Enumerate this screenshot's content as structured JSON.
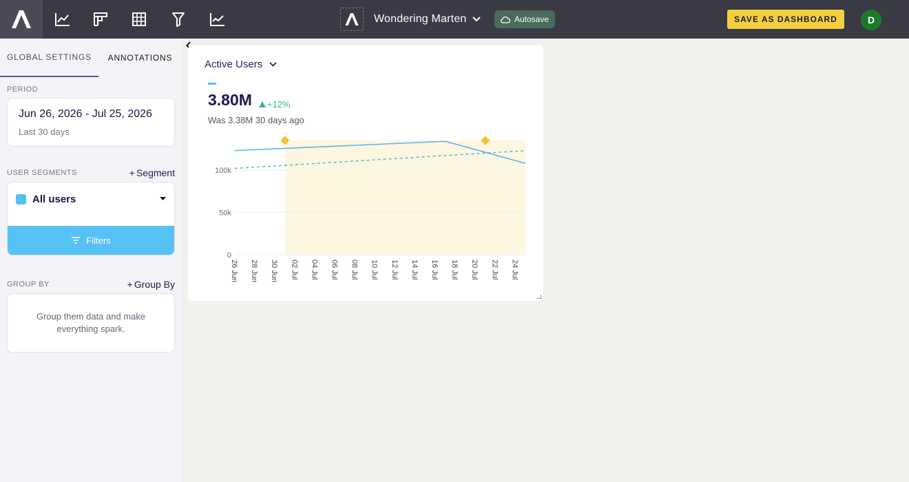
{
  "topbar": {
    "project_name": "Wondering Marten",
    "autosave_label": "Autosave",
    "save_dashboard_label": "SAVE AS DASHBOARD",
    "avatar_initial": "D",
    "nav_icons": [
      "trend-icon",
      "funnel-grid-icon",
      "table-icon",
      "filter-funnel-icon",
      "retention-icon"
    ]
  },
  "sidebar": {
    "tabs": [
      "GLOBAL SETTINGS",
      "ANNOTATIONS"
    ],
    "active_tab": "GLOBAL SETTINGS",
    "period": {
      "label": "PERIOD",
      "range": "Jun 26, 2026 - Jul 25, 2026",
      "sub": "Last 30 days"
    },
    "segments": {
      "label": "USER SEGMENTS",
      "add_label": "Segment",
      "item": "All users",
      "item_color": "#56c1ef",
      "filters_label": "Filters"
    },
    "groupby": {
      "label": "GROUP BY",
      "add_label": "Group By",
      "empty_text": "Group them data and make everything spark."
    }
  },
  "chart_card": {
    "title": "Active Users",
    "value": "3.80M",
    "delta": "+12%",
    "compare": "Was 3.38M 30 days ago"
  },
  "chart_data": {
    "type": "line",
    "x_labels": [
      "26 Jun",
      "28 Jun",
      "30 Jun",
      "02 Jul",
      "04 Jul",
      "06 Jul",
      "08 Jul",
      "10 Jul",
      "12 Jul",
      "14 Jul",
      "16 Jul",
      "18 Jul",
      "20 Jul",
      "22 Jul",
      "24 Jul"
    ],
    "y_ticks": [
      "0",
      "50k",
      "100k"
    ],
    "ylim": [
      0,
      135000
    ],
    "series": [
      {
        "style": "solid",
        "color": "#5cb8e6",
        "points": [
          [
            "26 Jun",
            123000
          ],
          [
            "17 Jul",
            134000
          ],
          [
            "25 Jul",
            108000
          ]
        ]
      },
      {
        "style": "dashed",
        "color": "#4fc3d9",
        "points": [
          [
            "26 Jun",
            102000
          ],
          [
            "25 Jul",
            123000
          ]
        ]
      }
    ],
    "highlight_range": [
      "01 Jul",
      "25 Jul"
    ],
    "highlight_color": "#fdf6e1",
    "annotation_markers": [
      "01 Jul",
      "21 Jul"
    ],
    "marker_color": "#f2c12e"
  }
}
